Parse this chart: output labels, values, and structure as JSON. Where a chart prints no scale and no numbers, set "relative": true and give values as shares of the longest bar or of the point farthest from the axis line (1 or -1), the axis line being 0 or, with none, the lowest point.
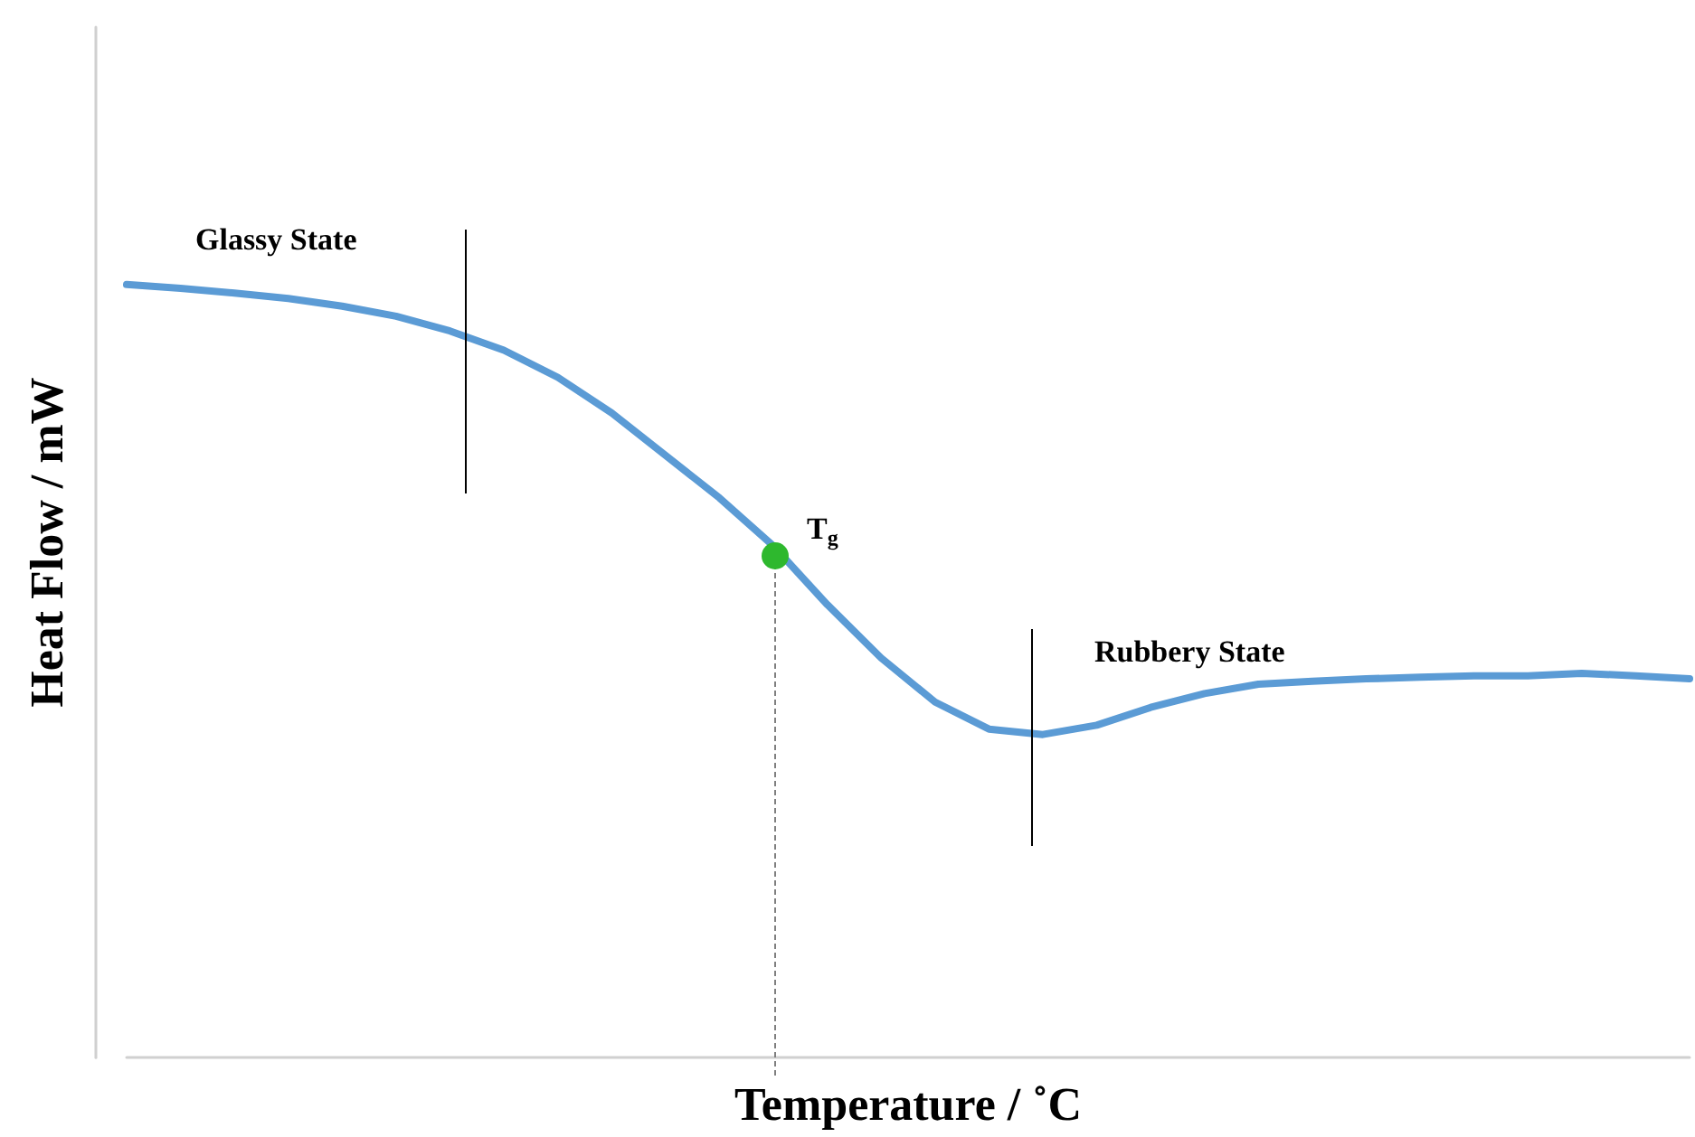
{
  "chart_data": {
    "type": "line",
    "relative": true,
    "xlabel": "Temperature / ˚C",
    "ylabel": "Heat Flow / mW",
    "categories": [
      null,
      null,
      null,
      null,
      null,
      null,
      null,
      null,
      null,
      null,
      null,
      null,
      null,
      null,
      null,
      null,
      null,
      null,
      null,
      null,
      null,
      null,
      null,
      null,
      null,
      null,
      null,
      null,
      null,
      null
    ],
    "series": [
      {
        "color": "#5b9bd5",
        "values": [
          1.0,
          0.995,
          0.989,
          0.982,
          0.972,
          0.959,
          0.94,
          0.915,
          0.88,
          0.834,
          0.779,
          0.724,
          0.662,
          0.586,
          0.517,
          0.46,
          0.425,
          0.418,
          0.43,
          0.453,
          0.471,
          0.483,
          0.487,
          0.49,
          0.492,
          0.494,
          0.494,
          0.497,
          0.494,
          0.49
        ]
      }
    ],
    "annotations": [
      "Glassy State",
      "Rubbery State",
      "T$_{g}$"
    ],
    "grid": false,
    "marker": "none",
    "line_style": "solid"
  }
}
